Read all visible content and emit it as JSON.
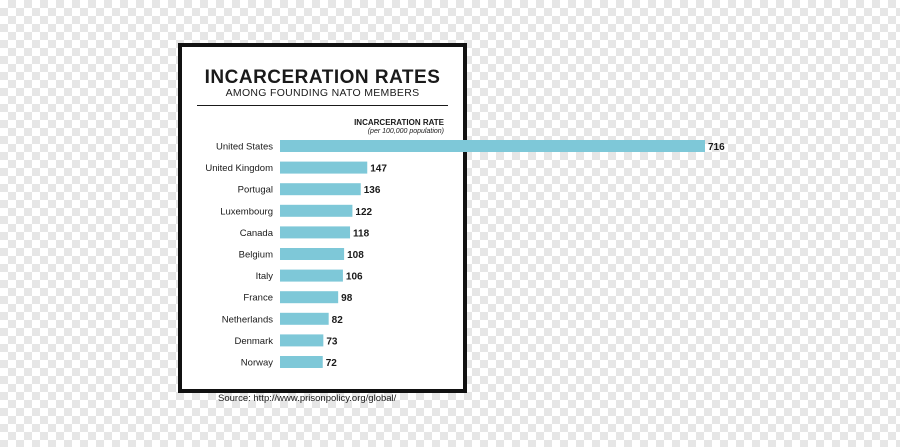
{
  "chart_data": {
    "type": "bar",
    "orientation": "horizontal",
    "title": "INCARCERATION RATES",
    "subtitle": "AMONG FOUNDING NATO MEMBERS",
    "value_label": "INCARCERATION RATE",
    "value_label_sub": "(per 100,000 population)",
    "categories": [
      "United States",
      "United Kingdom",
      "Portugal",
      "Luxembourg",
      "Canada",
      "Belgium",
      "Italy",
      "France",
      "Netherlands",
      "Denmark",
      "Norway"
    ],
    "values": [
      716,
      147,
      136,
      122,
      118,
      108,
      106,
      98,
      82,
      73,
      72
    ],
    "bar_color": "#7ec8d8",
    "legend": "none",
    "grid": false
  },
  "source": "Source: http://www.prisonpolicy.org/global/"
}
